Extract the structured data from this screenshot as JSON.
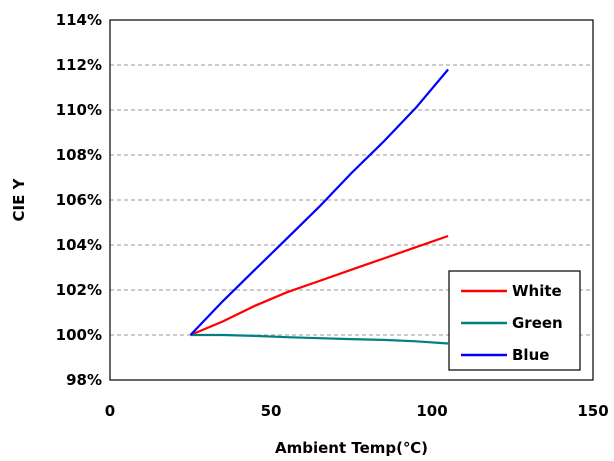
{
  "chart_data": {
    "type": "line",
    "xlabel": "Ambient Temp(℃)",
    "ylabel": "CIE Y",
    "xlim": [
      0,
      150
    ],
    "ylim": [
      98,
      114
    ],
    "x_ticks": [
      {
        "value": 0,
        "label": "0"
      },
      {
        "value": 50,
        "label": "50"
      },
      {
        "value": 100,
        "label": "100"
      },
      {
        "value": 150,
        "label": "150"
      }
    ],
    "y_ticks": [
      {
        "value": 98,
        "label": "98%"
      },
      {
        "value": 100,
        "label": "100%"
      },
      {
        "value": 102,
        "label": "102%"
      },
      {
        "value": 104,
        "label": "104%"
      },
      {
        "value": 106,
        "label": "106%"
      },
      {
        "value": 108,
        "label": "108%"
      },
      {
        "value": 110,
        "label": "110%"
      },
      {
        "value": 112,
        "label": "112%"
      },
      {
        "value": 114,
        "label": "114%"
      }
    ],
    "grid": {
      "horizontal": true,
      "vertical": false,
      "style": "dashed"
    },
    "legend_position": "bottom-right",
    "series": [
      {
        "name": "White",
        "color": "#ff0000",
        "points": [
          [
            25,
            100
          ],
          [
            35,
            100.6
          ],
          [
            45,
            101.3
          ],
          [
            55,
            101.9
          ],
          [
            65,
            102.4
          ],
          [
            75,
            102.9
          ],
          [
            85,
            103.4
          ],
          [
            95,
            103.9
          ],
          [
            105,
            104.4
          ]
        ]
      },
      {
        "name": "Green",
        "color": "#008080",
        "points": [
          [
            25,
            100
          ],
          [
            35,
            100
          ],
          [
            45,
            99.96
          ],
          [
            55,
            99.9
          ],
          [
            65,
            99.86
          ],
          [
            75,
            99.82
          ],
          [
            85,
            99.78
          ],
          [
            95,
            99.72
          ],
          [
            105,
            99.62
          ]
        ]
      },
      {
        "name": "Blue",
        "color": "#0000ff",
        "points": [
          [
            25,
            100
          ],
          [
            35,
            101.5
          ],
          [
            45,
            102.9
          ],
          [
            55,
            104.3
          ],
          [
            65,
            105.7
          ],
          [
            75,
            107.2
          ],
          [
            85,
            108.6
          ],
          [
            95,
            110.1
          ],
          [
            105,
            111.8
          ]
        ]
      }
    ]
  }
}
